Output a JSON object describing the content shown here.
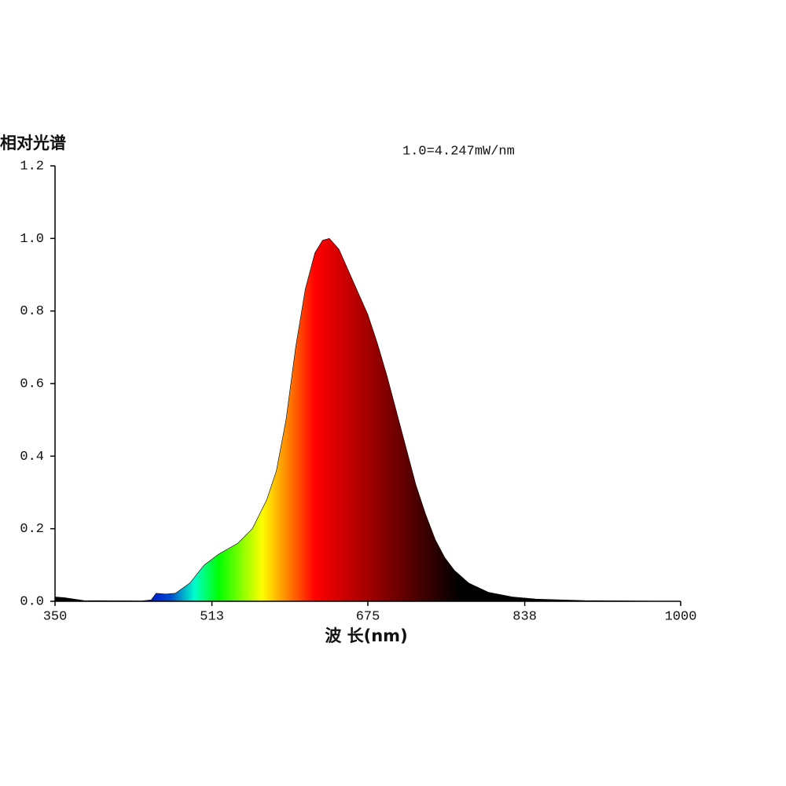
{
  "chart_data": {
    "type": "area",
    "y_axis_label": "相对光谱",
    "x_axis_label": "波 长(nm)",
    "annotation": "1.0=4.247mW/nm",
    "xlim": [
      350,
      1000
    ],
    "ylim": [
      0,
      1.2
    ],
    "xticks": [
      350,
      513,
      675,
      838,
      1000
    ],
    "yticks": [
      {
        "value": 0,
        "label": "0.0"
      },
      {
        "value": 0.2,
        "label": "0.2"
      },
      {
        "value": 0.4,
        "label": "0.4"
      },
      {
        "value": 0.6,
        "label": "0.6"
      },
      {
        "value": 0.8,
        "label": "0.8"
      },
      {
        "value": 1,
        "label": "1.0"
      },
      {
        "value": 1.2,
        "label": "1.2"
      }
    ],
    "color": "spectrum",
    "x": [
      350,
      360,
      380,
      440,
      450,
      455,
      465,
      475,
      490,
      505,
      520,
      540,
      555,
      570,
      580,
      590,
      600,
      610,
      620,
      628,
      635,
      645,
      655,
      665,
      675,
      685,
      695,
      705,
      715,
      725,
      735,
      745,
      755,
      765,
      780,
      800,
      825,
      850,
      900,
      950,
      1000
    ],
    "values": [
      0.012,
      0.01,
      0.002,
      0.001,
      0.004,
      0.022,
      0.02,
      0.022,
      0.05,
      0.1,
      0.13,
      0.16,
      0.2,
      0.28,
      0.36,
      0.5,
      0.7,
      0.86,
      0.96,
      0.995,
      1.0,
      0.97,
      0.91,
      0.85,
      0.79,
      0.71,
      0.62,
      0.52,
      0.42,
      0.32,
      0.24,
      0.17,
      0.12,
      0.085,
      0.05,
      0.025,
      0.012,
      0.006,
      0.002,
      0.001,
      0
    ]
  }
}
